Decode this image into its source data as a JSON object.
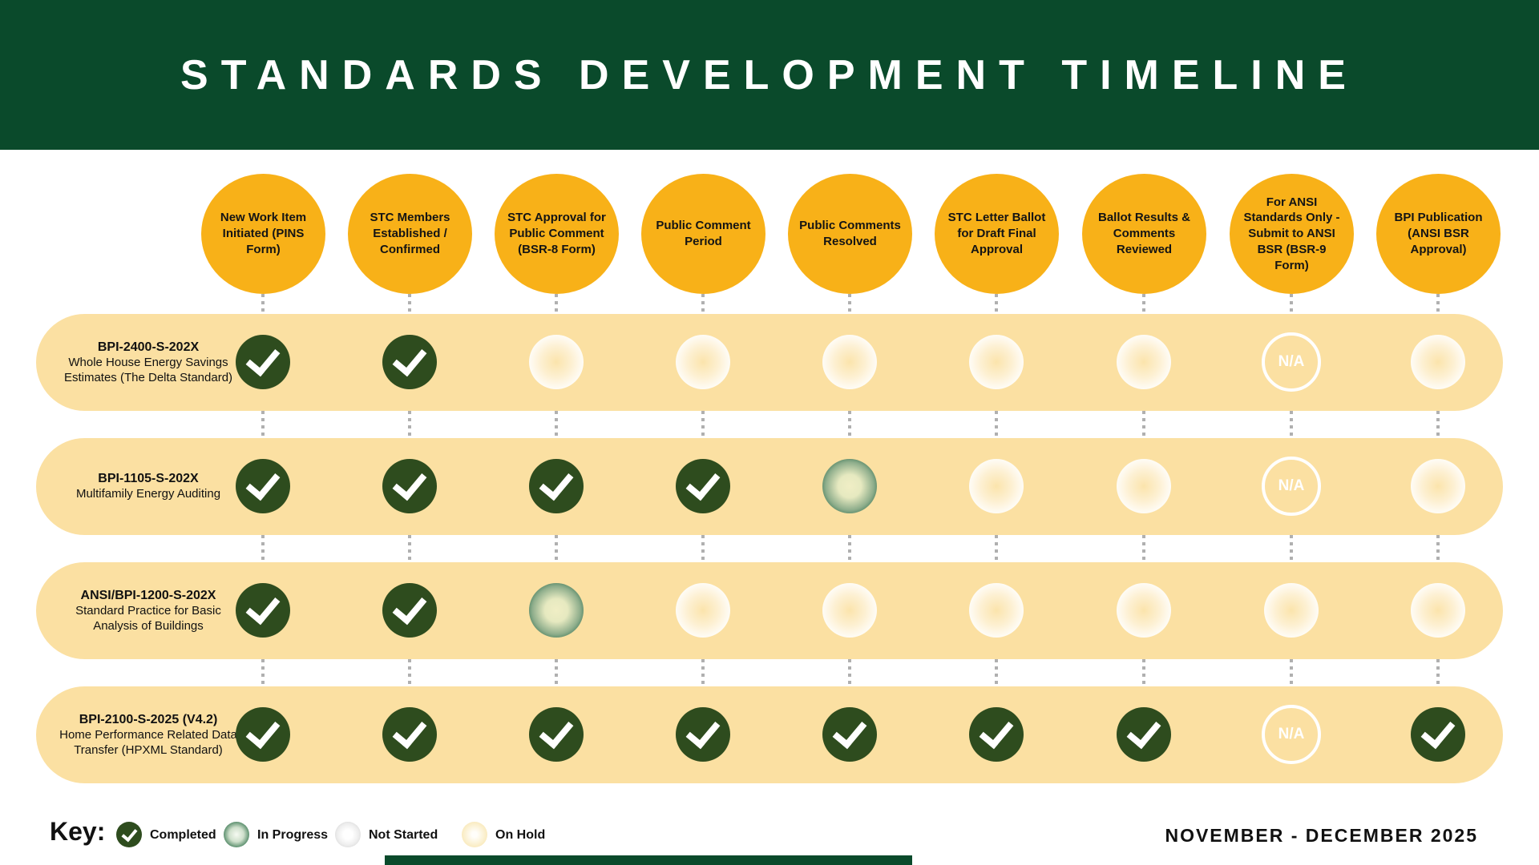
{
  "title": "STANDARDS DEVELOPMENT TIMELINE",
  "stages": [
    "New Work Item Initiated (PINS Form)",
    "STC Members Established / Confirmed",
    "STC Approval for Public Comment (BSR-8 Form)",
    "Public Comment Period",
    "Public Comments Resolved",
    "STC Letter Ballot for Draft Final Approval",
    "Ballot Results & Comments Reviewed",
    "For ANSI Standards Only - Submit to ANSI BSR (BSR-9 Form)",
    "BPI Publication (ANSI BSR Approval)"
  ],
  "na_label": "N/A",
  "rows": [
    {
      "code": "BPI-2400-S-202X",
      "name": "Whole House Energy Savings Estimates (The Delta Standard)",
      "statuses": [
        "completed",
        "completed",
        "on_hold",
        "on_hold",
        "on_hold",
        "on_hold",
        "on_hold",
        "na",
        "on_hold"
      ]
    },
    {
      "code": "BPI-1105-S-202X",
      "name": "Multifamily Energy Auditing",
      "statuses": [
        "completed",
        "completed",
        "completed",
        "completed",
        "in_progress",
        "on_hold",
        "on_hold",
        "na",
        "on_hold"
      ]
    },
    {
      "code": "ANSI/BPI-1200-S-202X",
      "name": "Standard Practice for Basic Analysis of Buildings",
      "statuses": [
        "completed",
        "completed",
        "in_progress",
        "on_hold",
        "on_hold",
        "on_hold",
        "on_hold",
        "on_hold",
        "on_hold"
      ]
    },
    {
      "code": "BPI-2100-S-2025 (V4.2)",
      "name": "Home Performance Related Data Transfer (HPXML Standard)",
      "statuses": [
        "completed",
        "completed",
        "completed",
        "completed",
        "completed",
        "completed",
        "completed",
        "na",
        "completed"
      ]
    }
  ],
  "key": {
    "label": "Key:",
    "items": [
      {
        "status": "completed",
        "label": "Completed"
      },
      {
        "status": "in_progress",
        "label": "In Progress"
      },
      {
        "status": "not_started",
        "label": "Not Started"
      },
      {
        "status": "on_hold",
        "label": "On Hold"
      }
    ]
  },
  "footer": {
    "date_range": "NOVEMBER - DECEMBER 2025"
  },
  "colors": {
    "header_green": "#0A4A2B",
    "stage_orange": "#F8B118",
    "row_background": "#FBE0A2",
    "completed_green": "#2E4C1E",
    "in_progress_green": "#1C5540",
    "on_hold_yellow": "#F5DD9E",
    "not_started_gray": "#C4C4C4",
    "connector_gray": "#B0B0B0"
  }
}
